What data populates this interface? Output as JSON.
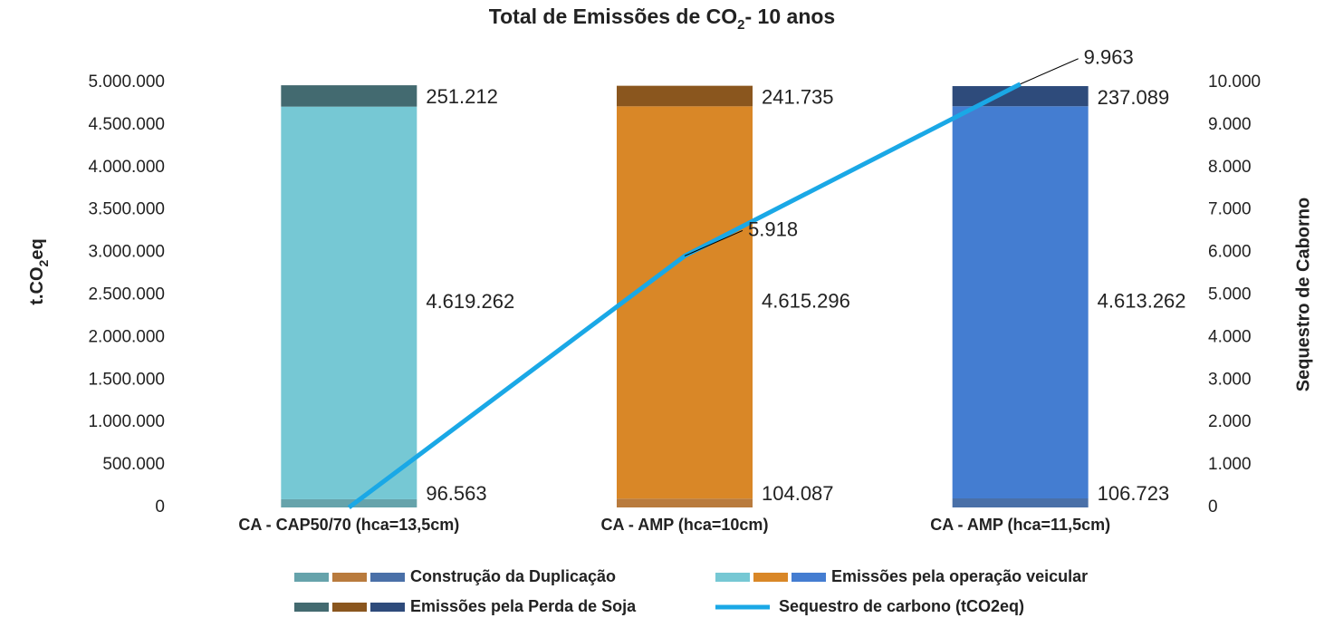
{
  "chart_data": {
    "type": "stacked_bar_line",
    "title": [
      "Total de Emissões de CO",
      "2",
      "- 10 anos"
    ],
    "y_label": [
      "t.CO",
      "2",
      "eq"
    ],
    "y2_label": "Sequestro de Caborno",
    "categories": [
      "CA - CAP50/70 (hca=13,5cm)",
      "CA - AMP (hca=10cm)",
      "CA - AMP (hca=11,5cm)"
    ],
    "series": [
      {
        "name": "Construção da Duplicação",
        "colors": [
          "#66a3ab",
          "#b97b3d",
          "#4a70a8"
        ],
        "values": [
          96563,
          104087,
          106723
        ],
        "value_labels": [
          "96.563",
          "104.087",
          "106.723"
        ]
      },
      {
        "name": "Emissões pela operação veicular",
        "colors": [
          "#76c8d4",
          "#d98727",
          "#447dd1"
        ],
        "values": [
          4619262,
          4615296,
          4613262
        ],
        "value_labels": [
          "4.619.262",
          "4.615.296",
          "4.613.262"
        ]
      },
      {
        "name": "Emissões pela Perda de Soja",
        "colors": [
          "#436a70",
          "#8a561e",
          "#2e4b7b"
        ],
        "values": [
          251212,
          241735,
          237089
        ],
        "value_labels": [
          "251.212",
          "241.735",
          "237.089"
        ]
      },
      {
        "name": "Sequestro de carbono (tCO2eq)",
        "color": "#1aa8e6",
        "axis": "y2",
        "values": [
          0,
          5918,
          9963
        ],
        "value_labels": [
          null,
          "5.918",
          "9.963"
        ]
      }
    ],
    "ylim": [
      0,
      5000000
    ],
    "yticks": [
      0,
      {
        "value": 500000,
        "label": "500.000"
      },
      {
        "value": 1000000,
        "label": "1.000.000"
      },
      {
        "value": 1500000,
        "label": "1.500.000"
      },
      {
        "value": 2000000,
        "label": "2.000.000"
      },
      {
        "value": 2500000,
        "label": "2.500.000"
      },
      {
        "value": 3000000,
        "label": "3.000.000"
      },
      {
        "value": 3500000,
        "label": "3.500.000"
      },
      {
        "value": 4000000,
        "label": "4.000.000"
      },
      {
        "value": 4500000,
        "label": "4.500.000"
      },
      {
        "value": 5000000,
        "label": "5.000.000"
      }
    ],
    "y2lim": [
      0,
      10000
    ],
    "y2ticks": [
      0,
      {
        "value": 1000,
        "label": "1.000"
      },
      {
        "value": 2000,
        "label": "2.000"
      },
      {
        "value": 3000,
        "label": "3.000"
      },
      {
        "value": 4000,
        "label": "4.000"
      },
      {
        "value": 5000,
        "label": "5.000"
      },
      {
        "value": 6000,
        "label": "6.000"
      },
      {
        "value": 7000,
        "label": "7.000"
      },
      {
        "value": 8000,
        "label": "8.000"
      },
      {
        "value": 9000,
        "label": "9.000"
      },
      {
        "value": 10000,
        "label": "10.000"
      }
    ]
  }
}
